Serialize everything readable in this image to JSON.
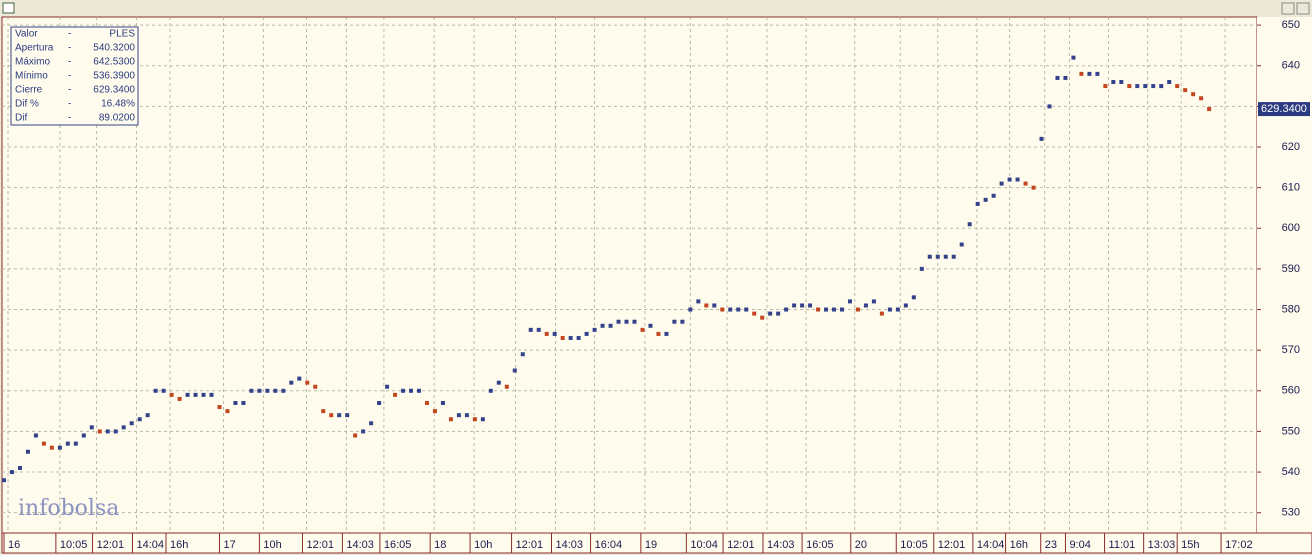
{
  "chart_data": {
    "type": "scatter",
    "info_box": [
      [
        "Valor",
        "-",
        "PLES"
      ],
      [
        "Apertura",
        "-",
        "540.3200"
      ],
      [
        "Máximo",
        "-",
        "642.5300"
      ],
      [
        "Mínimo",
        "-",
        "536.3900"
      ],
      [
        "Cierre",
        "-",
        "629.3400"
      ],
      [
        "Dif %",
        "-",
        "16.48%"
      ],
      [
        "Dif",
        "-",
        "89.0200"
      ]
    ],
    "logo": "infobolsa",
    "last_price_label": "629.3400",
    "up_color": "#34428a",
    "down_color": "#c4461e",
    "values": [
      538,
      540,
      541,
      545,
      549,
      547,
      546,
      546,
      547,
      547,
      549,
      551,
      550,
      550,
      550,
      551,
      552,
      553,
      554,
      560,
      560,
      559,
      558,
      559,
      559,
      559,
      559,
      556,
      555,
      557,
      557,
      560,
      560,
      560,
      560,
      560,
      562,
      563,
      562,
      561,
      555,
      554,
      554,
      554,
      549,
      550,
      552,
      557,
      561,
      559,
      560,
      560,
      560,
      557,
      555,
      557,
      553,
      554,
      554,
      553,
      553,
      560,
      562,
      561,
      565,
      569,
      575,
      575,
      574,
      574,
      573,
      573,
      573,
      574,
      575,
      576,
      576,
      577,
      577,
      577,
      575,
      576,
      574,
      574,
      577,
      577,
      580,
      582,
      581,
      581,
      580,
      580,
      580,
      580,
      579,
      578,
      579,
      579,
      580,
      581,
      581,
      581,
      580,
      580,
      580,
      580,
      582,
      580,
      581,
      582,
      579,
      580,
      580,
      581,
      583,
      590,
      593,
      593,
      593,
      593,
      596,
      601,
      606,
      607,
      608,
      611,
      612,
      612,
      611,
      610,
      622,
      630,
      637,
      637,
      642,
      638,
      638,
      638,
      635,
      636,
      636,
      635,
      635,
      635,
      635,
      635,
      636,
      635,
      634,
      633,
      632,
      629.34
    ],
    "xlim": [
      0,
      157
    ],
    "xticks": [
      {
        "value": 0.5,
        "label": "16"
      },
      {
        "value": 7,
        "label": "10:05"
      },
      {
        "value": 11.6,
        "label": "12:01"
      },
      {
        "value": 16.6,
        "label": "14:04"
      },
      {
        "value": 20.8,
        "label": "16h"
      },
      {
        "value": 27.5,
        "label": "17"
      },
      {
        "value": 32.5,
        "label": "10h"
      },
      {
        "value": 37.9,
        "label": "12:01"
      },
      {
        "value": 42.9,
        "label": "14:03"
      },
      {
        "value": 47.6,
        "label": "16:05"
      },
      {
        "value": 53.9,
        "label": "18"
      },
      {
        "value": 58.9,
        "label": "10h"
      },
      {
        "value": 64.1,
        "label": "12:01"
      },
      {
        "value": 69.1,
        "label": "14:03"
      },
      {
        "value": 74,
        "label": "16:04"
      },
      {
        "value": 80.3,
        "label": "19"
      },
      {
        "value": 86,
        "label": "10:04"
      },
      {
        "value": 90.6,
        "label": "12:01"
      },
      {
        "value": 95.6,
        "label": "14:03"
      },
      {
        "value": 100.5,
        "label": "16:05"
      },
      {
        "value": 106.6,
        "label": "20"
      },
      {
        "value": 112.3,
        "label": "10:05"
      },
      {
        "value": 117,
        "label": "12:01"
      },
      {
        "value": 121.9,
        "label": "14:04"
      },
      {
        "value": 126,
        "label": "16h"
      },
      {
        "value": 130.4,
        "label": "23"
      },
      {
        "value": 133.5,
        "label": "9:04"
      },
      {
        "value": 138.4,
        "label": "11:01"
      },
      {
        "value": 143.3,
        "label": "13:03"
      },
      {
        "value": 147.5,
        "label": "15h"
      },
      {
        "value": 153,
        "label": "17:02"
      }
    ],
    "ylim": [
      525,
      652
    ],
    "yticks": [
      530,
      540,
      550,
      560,
      570,
      580,
      590,
      600,
      610,
      620,
      630,
      640,
      650
    ],
    "grid": true
  }
}
